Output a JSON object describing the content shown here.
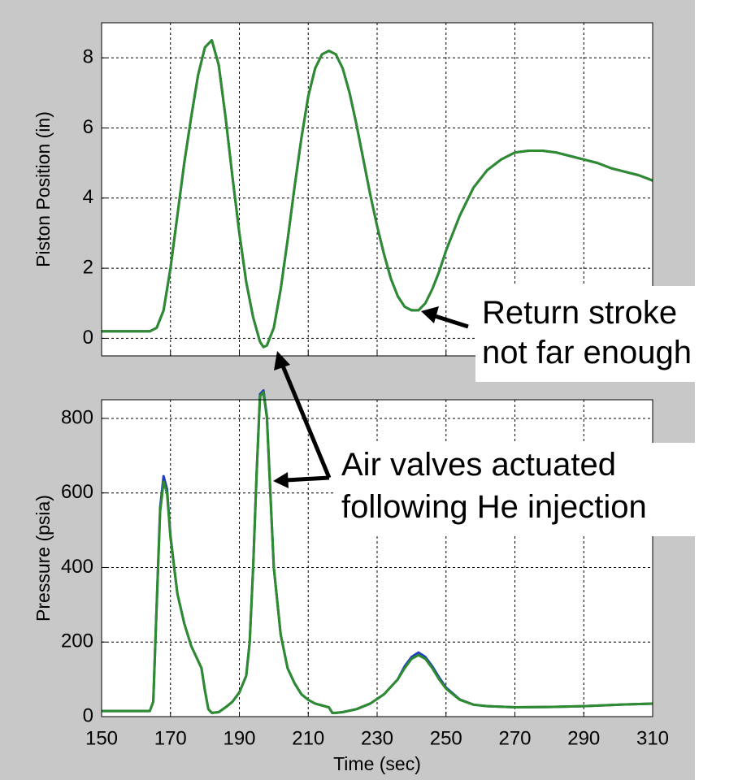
{
  "chart_data": [
    {
      "type": "line",
      "ylabel": "Piston Position (in)",
      "xlim": [
        150,
        310
      ],
      "xticks": [
        150,
        170,
        190,
        210,
        230,
        250,
        270,
        290,
        310
      ],
      "ylim": [
        -0.5,
        9
      ],
      "yticks": [
        0,
        2,
        4,
        6,
        8
      ],
      "grid": true,
      "x": [
        150,
        164,
        166,
        168,
        170,
        172,
        174,
        176,
        178,
        180,
        182,
        184,
        186,
        188,
        190,
        192,
        194,
        196,
        197,
        198,
        200,
        202,
        204,
        206,
        208,
        210,
        212,
        214,
        216,
        218,
        220,
        222,
        224,
        226,
        228,
        230,
        232,
        234,
        236,
        238,
        240,
        242,
        244,
        246,
        248,
        250,
        254,
        258,
        262,
        266,
        270,
        274,
        278,
        282,
        286,
        290,
        294,
        298,
        302,
        306,
        310
      ],
      "series": [
        {
          "color": "#1f3fbf",
          "values": [
            0.2,
            0.2,
            0.3,
            0.8,
            2.0,
            3.5,
            5.0,
            6.3,
            7.5,
            8.3,
            8.5,
            7.8,
            6.3,
            4.6,
            3.0,
            1.6,
            0.6,
            -0.1,
            -0.25,
            -0.2,
            0.3,
            1.4,
            2.8,
            4.3,
            5.7,
            6.9,
            7.7,
            8.1,
            8.2,
            8.1,
            7.7,
            7.0,
            6.1,
            5.1,
            4.1,
            3.2,
            2.4,
            1.7,
            1.2,
            0.9,
            0.8,
            0.8,
            1.0,
            1.4,
            1.9,
            2.5,
            3.5,
            4.3,
            4.8,
            5.1,
            5.3,
            5.35,
            5.35,
            5.3,
            5.2,
            5.1,
            5.0,
            4.85,
            4.75,
            4.65,
            4.5
          ]
        },
        {
          "color": "#2e8b2e",
          "values": [
            0.2,
            0.2,
            0.3,
            0.8,
            2.0,
            3.5,
            5.0,
            6.3,
            7.5,
            8.3,
            8.5,
            7.8,
            6.3,
            4.6,
            3.0,
            1.6,
            0.6,
            -0.1,
            -0.25,
            -0.2,
            0.3,
            1.4,
            2.8,
            4.3,
            5.7,
            6.9,
            7.7,
            8.1,
            8.2,
            8.1,
            7.7,
            7.0,
            6.1,
            5.1,
            4.1,
            3.2,
            2.4,
            1.7,
            1.2,
            0.9,
            0.8,
            0.8,
            1.0,
            1.4,
            1.9,
            2.5,
            3.5,
            4.3,
            4.8,
            5.1,
            5.3,
            5.35,
            5.35,
            5.3,
            5.2,
            5.1,
            5.0,
            4.85,
            4.75,
            4.65,
            4.5
          ]
        }
      ]
    },
    {
      "type": "line",
      "ylabel": "Pressure (psia)",
      "xlabel": "Time (sec)",
      "xlim": [
        150,
        310
      ],
      "xticks": [
        150,
        170,
        190,
        210,
        230,
        250,
        270,
        290,
        310
      ],
      "ylim": [
        0,
        850
      ],
      "yticks": [
        0,
        200,
        400,
        600,
        800
      ],
      "grid": true,
      "x": [
        150,
        164,
        165,
        166,
        167,
        168,
        169,
        170,
        172,
        174,
        176,
        178,
        179,
        180,
        181,
        182,
        184,
        186,
        188,
        190,
        192,
        193,
        194,
        195,
        196,
        197,
        198,
        199,
        200,
        202,
        204,
        206,
        208,
        210,
        212,
        214,
        216,
        217,
        218,
        220,
        224,
        228,
        232,
        236,
        238,
        240,
        242,
        244,
        246,
        248,
        250,
        254,
        258,
        262,
        270,
        280,
        290,
        300,
        310
      ],
      "series": [
        {
          "color": "#1f3fbf",
          "values": [
            15,
            15,
            40,
            300,
            560,
            645,
            610,
            485,
            330,
            250,
            190,
            150,
            130,
            70,
            20,
            10,
            12,
            25,
            40,
            65,
            110,
            200,
            400,
            650,
            865,
            875,
            805,
            600,
            400,
            220,
            130,
            90,
            60,
            45,
            35,
            30,
            25,
            10,
            10,
            12,
            20,
            35,
            60,
            100,
            135,
            160,
            172,
            160,
            135,
            105,
            78,
            46,
            32,
            28,
            25,
            26,
            28,
            32,
            35
          ]
        },
        {
          "color": "#2e8b2e",
          "values": [
            15,
            15,
            40,
            300,
            550,
            630,
            600,
            480,
            330,
            250,
            190,
            150,
            130,
            70,
            20,
            10,
            12,
            25,
            40,
            65,
            110,
            200,
            400,
            650,
            860,
            870,
            800,
            600,
            400,
            220,
            130,
            90,
            60,
            45,
            35,
            30,
            25,
            10,
            10,
            12,
            20,
            35,
            60,
            100,
            130,
            155,
            165,
            155,
            130,
            100,
            75,
            45,
            32,
            28,
            25,
            26,
            28,
            32,
            35
          ]
        }
      ]
    }
  ],
  "annotations": [
    {
      "lines": [
        "Return stroke",
        "not far enough"
      ]
    },
    {
      "lines": [
        "Air valves actuated",
        "following He injection"
      ]
    }
  ]
}
